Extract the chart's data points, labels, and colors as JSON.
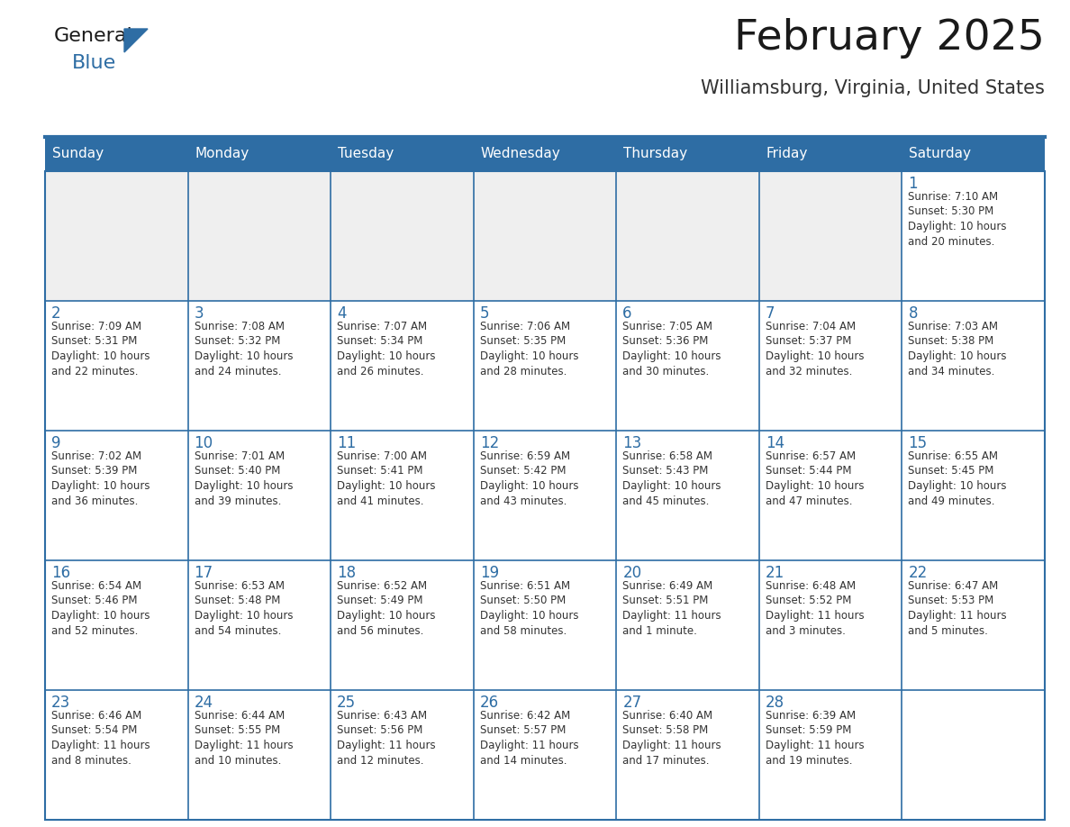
{
  "title": "February 2025",
  "subtitle": "Williamsburg, Virginia, United States",
  "header_bg": "#2E6DA4",
  "header_text": "#FFFFFF",
  "cell_bg_light": "#EFEFEF",
  "cell_bg_white": "#FFFFFF",
  "border_color": "#2E6DA4",
  "day_names": [
    "Sunday",
    "Monday",
    "Tuesday",
    "Wednesday",
    "Thursday",
    "Friday",
    "Saturday"
  ],
  "title_color": "#1a1a1a",
  "subtitle_color": "#333333",
  "day_num_color": "#2E6DA4",
  "cell_text_color": "#333333",
  "logo_general_color": "#1a1a1a",
  "logo_blue_color": "#2E6DA4",
  "logo_triangle_color": "#2E6DA4",
  "days": [
    {
      "day": 1,
      "col": 6,
      "row": 0,
      "sunrise": "7:10 AM",
      "sunset": "5:30 PM",
      "daylight": "10 hours and 20 minutes."
    },
    {
      "day": 2,
      "col": 0,
      "row": 1,
      "sunrise": "7:09 AM",
      "sunset": "5:31 PM",
      "daylight": "10 hours and 22 minutes."
    },
    {
      "day": 3,
      "col": 1,
      "row": 1,
      "sunrise": "7:08 AM",
      "sunset": "5:32 PM",
      "daylight": "10 hours and 24 minutes."
    },
    {
      "day": 4,
      "col": 2,
      "row": 1,
      "sunrise": "7:07 AM",
      "sunset": "5:34 PM",
      "daylight": "10 hours and 26 minutes."
    },
    {
      "day": 5,
      "col": 3,
      "row": 1,
      "sunrise": "7:06 AM",
      "sunset": "5:35 PM",
      "daylight": "10 hours and 28 minutes."
    },
    {
      "day": 6,
      "col": 4,
      "row": 1,
      "sunrise": "7:05 AM",
      "sunset": "5:36 PM",
      "daylight": "10 hours and 30 minutes."
    },
    {
      "day": 7,
      "col": 5,
      "row": 1,
      "sunrise": "7:04 AM",
      "sunset": "5:37 PM",
      "daylight": "10 hours and 32 minutes."
    },
    {
      "day": 8,
      "col": 6,
      "row": 1,
      "sunrise": "7:03 AM",
      "sunset": "5:38 PM",
      "daylight": "10 hours and 34 minutes."
    },
    {
      "day": 9,
      "col": 0,
      "row": 2,
      "sunrise": "7:02 AM",
      "sunset": "5:39 PM",
      "daylight": "10 hours and 36 minutes."
    },
    {
      "day": 10,
      "col": 1,
      "row": 2,
      "sunrise": "7:01 AM",
      "sunset": "5:40 PM",
      "daylight": "10 hours and 39 minutes."
    },
    {
      "day": 11,
      "col": 2,
      "row": 2,
      "sunrise": "7:00 AM",
      "sunset": "5:41 PM",
      "daylight": "10 hours and 41 minutes."
    },
    {
      "day": 12,
      "col": 3,
      "row": 2,
      "sunrise": "6:59 AM",
      "sunset": "5:42 PM",
      "daylight": "10 hours and 43 minutes."
    },
    {
      "day": 13,
      "col": 4,
      "row": 2,
      "sunrise": "6:58 AM",
      "sunset": "5:43 PM",
      "daylight": "10 hours and 45 minutes."
    },
    {
      "day": 14,
      "col": 5,
      "row": 2,
      "sunrise": "6:57 AM",
      "sunset": "5:44 PM",
      "daylight": "10 hours and 47 minutes."
    },
    {
      "day": 15,
      "col": 6,
      "row": 2,
      "sunrise": "6:55 AM",
      "sunset": "5:45 PM",
      "daylight": "10 hours and 49 minutes."
    },
    {
      "day": 16,
      "col": 0,
      "row": 3,
      "sunrise": "6:54 AM",
      "sunset": "5:46 PM",
      "daylight": "10 hours and 52 minutes."
    },
    {
      "day": 17,
      "col": 1,
      "row": 3,
      "sunrise": "6:53 AM",
      "sunset": "5:48 PM",
      "daylight": "10 hours and 54 minutes."
    },
    {
      "day": 18,
      "col": 2,
      "row": 3,
      "sunrise": "6:52 AM",
      "sunset": "5:49 PM",
      "daylight": "10 hours and 56 minutes."
    },
    {
      "day": 19,
      "col": 3,
      "row": 3,
      "sunrise": "6:51 AM",
      "sunset": "5:50 PM",
      "daylight": "10 hours and 58 minutes."
    },
    {
      "day": 20,
      "col": 4,
      "row": 3,
      "sunrise": "6:49 AM",
      "sunset": "5:51 PM",
      "daylight": "11 hours and 1 minute."
    },
    {
      "day": 21,
      "col": 5,
      "row": 3,
      "sunrise": "6:48 AM",
      "sunset": "5:52 PM",
      "daylight": "11 hours and 3 minutes."
    },
    {
      "day": 22,
      "col": 6,
      "row": 3,
      "sunrise": "6:47 AM",
      "sunset": "5:53 PM",
      "daylight": "11 hours and 5 minutes."
    },
    {
      "day": 23,
      "col": 0,
      "row": 4,
      "sunrise": "6:46 AM",
      "sunset": "5:54 PM",
      "daylight": "11 hours and 8 minutes."
    },
    {
      "day": 24,
      "col": 1,
      "row": 4,
      "sunrise": "6:44 AM",
      "sunset": "5:55 PM",
      "daylight": "11 hours and 10 minutes."
    },
    {
      "day": 25,
      "col": 2,
      "row": 4,
      "sunrise": "6:43 AM",
      "sunset": "5:56 PM",
      "daylight": "11 hours and 12 minutes."
    },
    {
      "day": 26,
      "col": 3,
      "row": 4,
      "sunrise": "6:42 AM",
      "sunset": "5:57 PM",
      "daylight": "11 hours and 14 minutes."
    },
    {
      "day": 27,
      "col": 4,
      "row": 4,
      "sunrise": "6:40 AM",
      "sunset": "5:58 PM",
      "daylight": "11 hours and 17 minutes."
    },
    {
      "day": 28,
      "col": 5,
      "row": 4,
      "sunrise": "6:39 AM",
      "sunset": "5:59 PM",
      "daylight": "11 hours and 19 minutes."
    }
  ]
}
